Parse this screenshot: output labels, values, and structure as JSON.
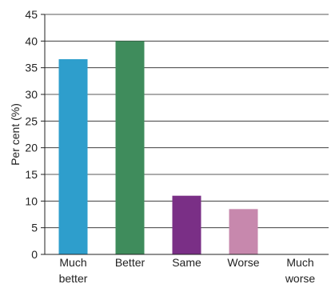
{
  "chart_data": {
    "type": "bar",
    "categories": [
      [
        "Much",
        "better"
      ],
      [
        "Better"
      ],
      [
        "Same"
      ],
      [
        "Worse"
      ],
      [
        "Much",
        "worse"
      ]
    ],
    "values": [
      36.6,
      40,
      11,
      8.5,
      0
    ],
    "colors": [
      "#2e9ecc",
      "#3f8c5c",
      "#7a2f86",
      "#c788ad",
      "#cccccc"
    ],
    "ylabel": "Per cent (%)",
    "ylim": [
      0,
      45
    ],
    "yticks": [
      0,
      5,
      10,
      15,
      20,
      25,
      30,
      35,
      40,
      45
    ],
    "grid": true,
    "legend": "none"
  }
}
